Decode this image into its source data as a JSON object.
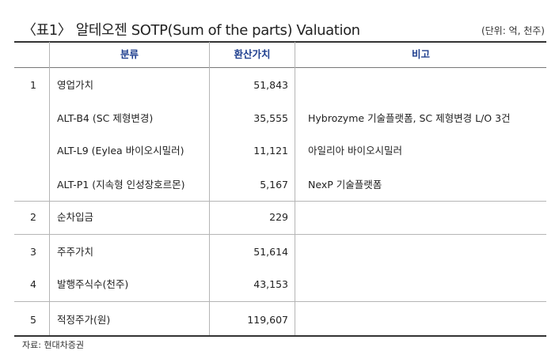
{
  "title": "〈표1〉 알테오젠 SOTP(Sum of the parts) Valuation",
  "unit": "(단위: 억, 천주)",
  "headers": {
    "category": "분류",
    "value": "환산가치",
    "note": "비고"
  },
  "rows": [
    {
      "no": "1",
      "category": "영업가치",
      "value": "51,843",
      "note": ""
    },
    {
      "no": "",
      "category": "ALT-B4 (SC 제형변경)",
      "value": "35,555",
      "note": "Hybrozyme 기술플랫폼, SC 제형변경 L/O 3건"
    },
    {
      "no": "",
      "category": "ALT-L9 (Eylea 바이오시밀러)",
      "value": "11,121",
      "note": "아일리아 바이오시밀러"
    },
    {
      "no": "",
      "category": "ALT-P1 (지속형 인성장호르몬)",
      "value": "5,167",
      "note": "NexP 기술플랫폼"
    },
    {
      "no": "2",
      "category": "순차입금",
      "value": "229",
      "note": ""
    },
    {
      "no": "3",
      "category": "주주가치",
      "value": "51,614",
      "note": ""
    },
    {
      "no": "4",
      "category": "발행주식수(천주)",
      "value": "43,153",
      "note": ""
    },
    {
      "no": "5",
      "category": "적정주가(원)",
      "value": "119,607",
      "note": ""
    }
  ],
  "source": "자료: 현대차증권"
}
